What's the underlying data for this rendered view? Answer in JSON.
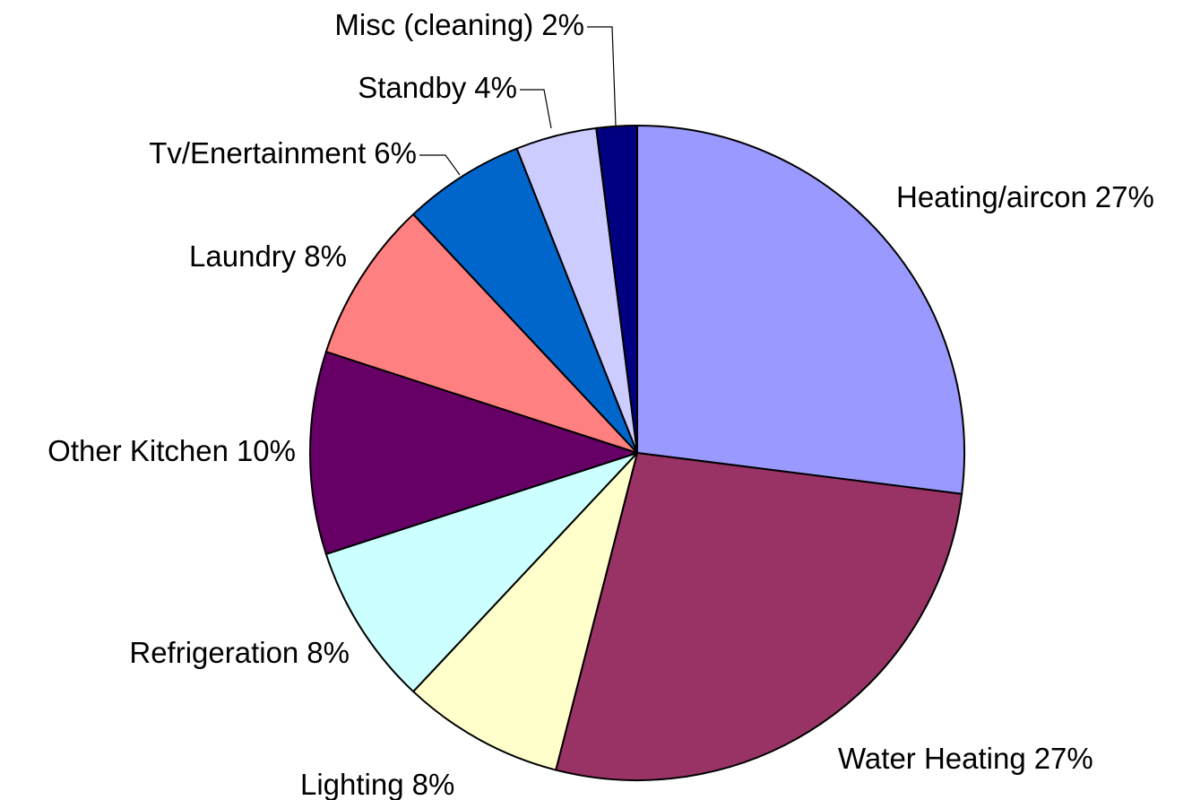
{
  "chart_data": {
    "type": "pie",
    "categories": [
      "Heating/aircon",
      "Water Heating",
      "Lighting",
      "Refrigeration",
      "Other Kitchen",
      "Laundry",
      "Tv/Enertainment",
      "Standby",
      "Misc (cleaning)"
    ],
    "values": [
      27,
      27,
      8,
      8,
      10,
      8,
      6,
      4,
      2
    ],
    "value_labels": [
      "27%",
      "27%",
      "8%",
      "8%",
      "10%",
      "8%",
      "6%",
      "4%",
      "2%"
    ],
    "colors": [
      "#9999ff",
      "#993366",
      "#ffffcc",
      "#ccffff",
      "#660066",
      "#ff8080",
      "#0066cc",
      "#ccccff",
      "#000080"
    ]
  }
}
